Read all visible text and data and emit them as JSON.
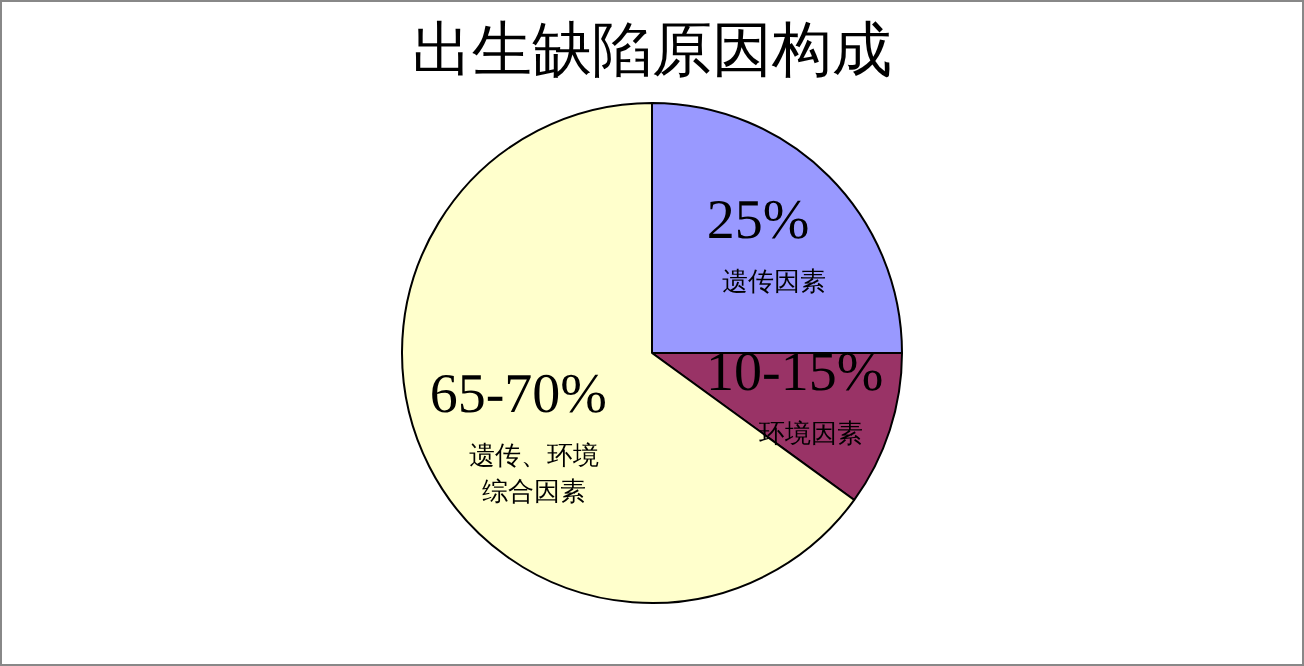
{
  "chart_data": {
    "type": "pie",
    "title": "出生缺陷原因构成",
    "categories": [
      "遗传因素",
      "环境因素",
      "遗传、环境综合因素"
    ],
    "values": [
      25,
      10,
      65
    ],
    "value_labels": [
      "25%",
      "10-15%",
      "65-70%"
    ],
    "colors": [
      "#9999ff",
      "#993366",
      "#ffffcc"
    ],
    "legend": false
  }
}
